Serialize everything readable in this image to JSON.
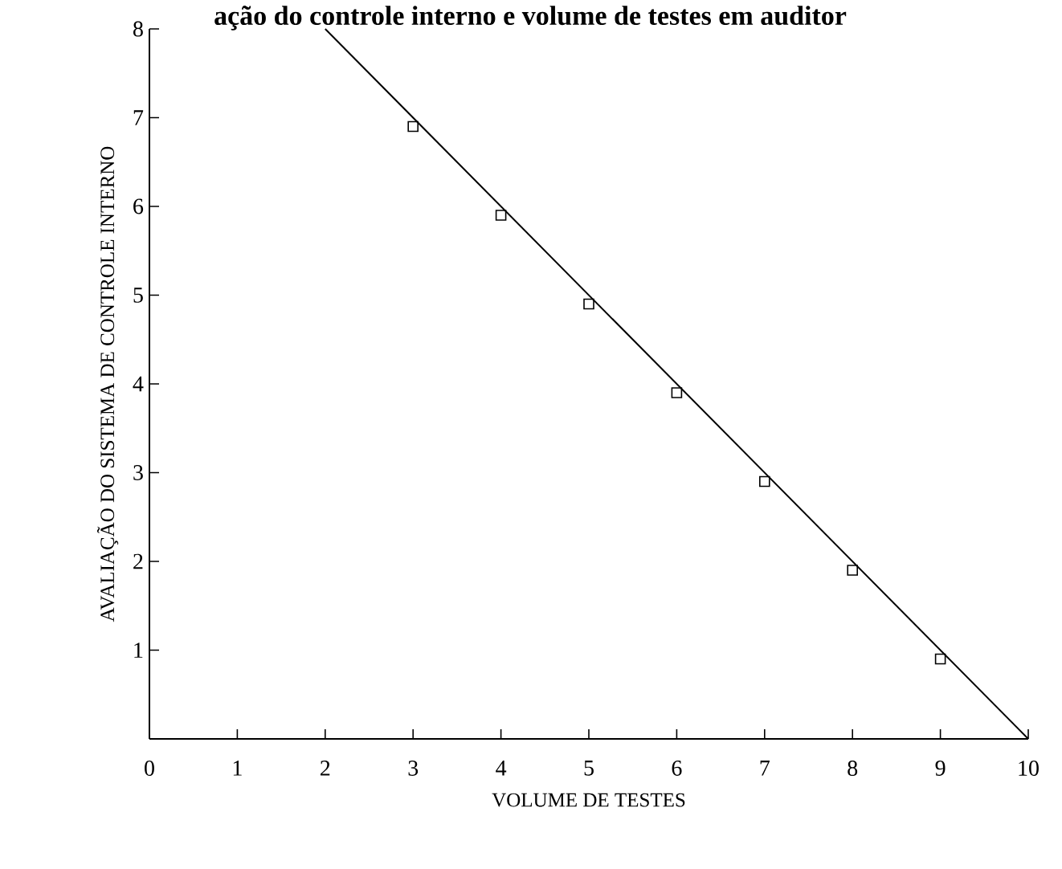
{
  "chart_data": {
    "type": "scatter",
    "title": "ação do controle interno e volume de testes em auditor",
    "xlabel": "VOLUME DE TESTES",
    "ylabel": "AVALIAÇÃO DO SISTEMA DE CONTROLE INTERNO",
    "series": [
      {
        "type": "line",
        "color": "#000000",
        "x": [
          2,
          10
        ],
        "values": [
          8,
          0
        ],
        "marker": "none"
      },
      {
        "color": "#000000",
        "x": [
          3,
          4,
          5,
          6,
          7,
          8,
          9
        ],
        "values": [
          6.9,
          5.9,
          4.9,
          3.9,
          2.9,
          1.9,
          0.9
        ],
        "marker": "square"
      }
    ],
    "xlim": [
      0,
      10
    ],
    "ylim": [
      0,
      8
    ],
    "xticks": [
      0,
      1,
      2,
      3,
      4,
      5,
      6,
      7,
      8,
      9,
      10
    ],
    "yticks": [
      1,
      2,
      3,
      4,
      5,
      6,
      7,
      8
    ],
    "grid": false
  }
}
